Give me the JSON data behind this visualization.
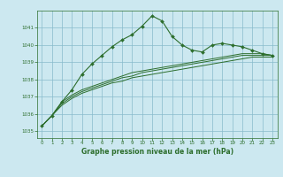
{
  "title": "Graphe pression niveau de la mer (hPa)",
  "bg_color": "#cce8f0",
  "grid_color_major": "#88bbcc",
  "grid_color_minor": "#aad4dd",
  "line_color": "#2d6e2d",
  "xlim": [
    -0.5,
    23.5
  ],
  "ylim": [
    1034.6,
    1042.0
  ],
  "yticks": [
    1035,
    1036,
    1037,
    1038,
    1039,
    1040,
    1041
  ],
  "xticks": [
    0,
    1,
    2,
    3,
    4,
    5,
    6,
    7,
    8,
    9,
    10,
    11,
    12,
    13,
    14,
    15,
    16,
    17,
    18,
    19,
    20,
    21,
    22,
    23
  ],
  "main_x": [
    0,
    1,
    2,
    3,
    4,
    5,
    6,
    7,
    8,
    9,
    10,
    11,
    12,
    13,
    14,
    15,
    16,
    17,
    18,
    19,
    20,
    21,
    22,
    23
  ],
  "main_y": [
    1035.3,
    1035.9,
    1036.7,
    1037.4,
    1038.3,
    1038.9,
    1039.4,
    1039.9,
    1040.3,
    1040.6,
    1041.1,
    1041.7,
    1041.4,
    1040.5,
    1040.0,
    1039.7,
    1039.6,
    1040.0,
    1040.1,
    1040.0,
    1039.9,
    1039.7,
    1039.5,
    1039.4
  ],
  "smooth1_y": [
    1035.3,
    1035.9,
    1036.5,
    1036.9,
    1037.2,
    1037.4,
    1037.6,
    1037.8,
    1037.9,
    1038.1,
    1038.2,
    1038.3,
    1038.4,
    1038.5,
    1038.6,
    1038.7,
    1038.8,
    1038.9,
    1039.0,
    1039.1,
    1039.2,
    1039.3,
    1039.3,
    1039.3
  ],
  "smooth2_y": [
    1035.3,
    1035.9,
    1036.6,
    1037.0,
    1037.3,
    1037.5,
    1037.7,
    1037.9,
    1038.1,
    1038.2,
    1038.4,
    1038.5,
    1038.6,
    1038.7,
    1038.8,
    1038.9,
    1039.0,
    1039.1,
    1039.2,
    1039.3,
    1039.4,
    1039.4,
    1039.4,
    1039.4
  ],
  "smooth3_y": [
    1035.3,
    1035.9,
    1036.7,
    1037.1,
    1037.4,
    1037.6,
    1037.8,
    1038.0,
    1038.2,
    1038.4,
    1038.5,
    1038.6,
    1038.7,
    1038.8,
    1038.9,
    1039.0,
    1039.1,
    1039.2,
    1039.3,
    1039.4,
    1039.5,
    1039.5,
    1039.5,
    1039.4
  ],
  "tick_fontsize": 4.0,
  "label_fontsize": 5.5
}
